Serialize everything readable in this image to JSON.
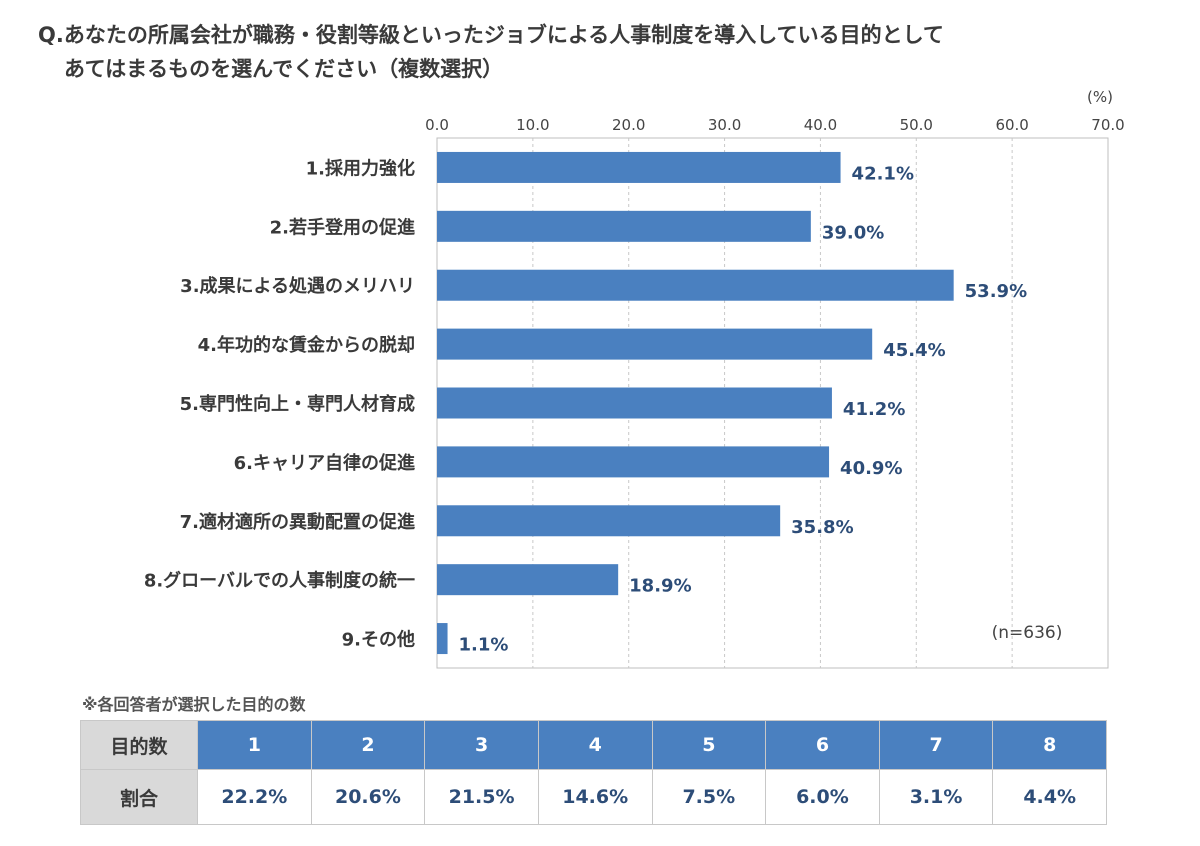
{
  "question": {
    "line1": "Q.あなたの所属会社が職務・役割等級といったジョブによる人事制度を導入している目的として",
    "line2": "あてはまるものを選んでください（複数選択）"
  },
  "chart_data": {
    "type": "bar",
    "orientation": "horizontal",
    "unit_label": "(%)",
    "x_ticks": [
      "0.0",
      "10.0",
      "20.0",
      "30.0",
      "40.0",
      "50.0",
      "60.0",
      "70.0"
    ],
    "xlim": [
      0,
      70
    ],
    "grid": true,
    "categories": [
      "1.採用力強化",
      "2.若手登用の促進",
      "3.成果による処遇のメリハリ",
      "4.年功的な賃金からの脱却",
      "5.専門性向上・専門人材育成",
      "6.キャリア自律の促進",
      "7.適材適所の異動配置の促進",
      "8.グローバルでの人事制度の統一",
      "9.その他"
    ],
    "values": [
      42.1,
      39.0,
      53.9,
      45.4,
      41.2,
      40.9,
      35.8,
      18.9,
      1.1
    ],
    "value_labels": [
      "42.1%",
      "39.0%",
      "53.9%",
      "45.4%",
      "41.2%",
      "40.9%",
      "35.8%",
      "18.9%",
      "1.1%"
    ],
    "sample_note": "(n=636)",
    "bar_color": "#4a80c0",
    "label_color": "#2d4d78"
  },
  "footnote": "※各回答者が選択した目的の数",
  "table": {
    "row1_header": "目的数",
    "row2_header": "割合",
    "counts": [
      "1",
      "2",
      "3",
      "4",
      "5",
      "6",
      "7",
      "8"
    ],
    "ratios": [
      "22.2%",
      "20.6%",
      "21.5%",
      "14.6%",
      "7.5%",
      "6.0%",
      "3.1%",
      "4.4%"
    ]
  }
}
